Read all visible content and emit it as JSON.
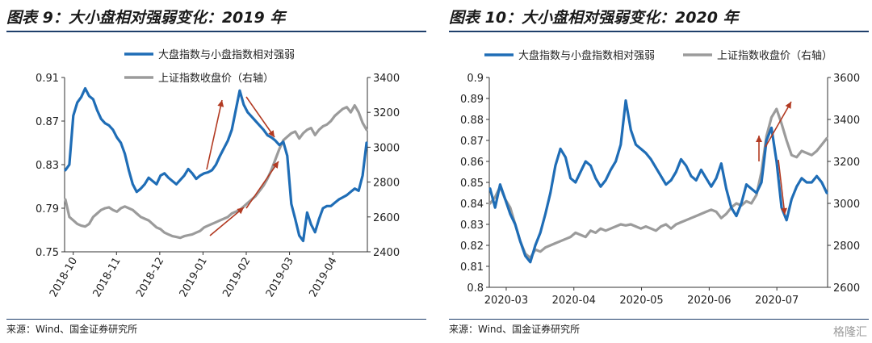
{
  "colors": {
    "blue": "#1f6db6",
    "gray": "#9b9b9b",
    "arrow": "#b23a22",
    "title_rule": "#1f3f6b"
  },
  "left": {
    "title": "图表 9：大小盘相对强弱变化：2019 年",
    "source": "来源：Wind、国金证券研究所"
  },
  "right": {
    "title": "图表 10：大小盘相对强弱变化：2020 年",
    "source": "来源：Wind、国金证券研究所"
  },
  "watermark": "格隆汇",
  "chart_data": [
    {
      "type": "line",
      "legend_placement": "top",
      "grid": false,
      "x_ticks": [
        "2018-10",
        "2018-11",
        "2018-12",
        "2019-01",
        "2019-02",
        "2019-03",
        "2019-04"
      ],
      "ylim": [
        0.75,
        0.91
      ],
      "y_ticks": [
        0.91,
        0.87,
        0.83,
        0.79,
        0.75
      ],
      "y2lim": [
        2400,
        3400
      ],
      "y2_ticks": [
        3400,
        3200,
        3000,
        2800,
        2600,
        2400
      ],
      "series": [
        {
          "name": "大盘指数与小盘指数相对强弱",
          "axis": "left",
          "values": [
            0.825,
            0.83,
            0.875,
            0.887,
            0.892,
            0.9,
            0.893,
            0.89,
            0.88,
            0.872,
            0.868,
            0.866,
            0.862,
            0.855,
            0.85,
            0.84,
            0.825,
            0.812,
            0.805,
            0.808,
            0.812,
            0.818,
            0.815,
            0.812,
            0.82,
            0.822,
            0.818,
            0.815,
            0.812,
            0.816,
            0.82,
            0.826,
            0.822,
            0.817,
            0.82,
            0.822,
            0.823,
            0.825,
            0.83,
            0.838,
            0.845,
            0.852,
            0.862,
            0.88,
            0.898,
            0.885,
            0.878,
            0.874,
            0.87,
            0.866,
            0.862,
            0.857,
            0.855,
            0.852,
            0.848,
            0.851,
            0.838,
            0.794,
            0.78,
            0.765,
            0.76,
            0.786,
            0.775,
            0.768,
            0.78,
            0.79,
            0.792,
            0.792,
            0.795,
            0.798,
            0.8,
            0.802,
            0.805,
            0.808,
            0.806,
            0.82,
            0.85
          ]
        },
        {
          "name": "上证指数收盘价（右轴）",
          "axis": "right",
          "values": [
            2700,
            2600,
            2580,
            2560,
            2550,
            2545,
            2560,
            2600,
            2620,
            2640,
            2650,
            2655,
            2640,
            2630,
            2650,
            2660,
            2650,
            2640,
            2620,
            2600,
            2590,
            2580,
            2560,
            2540,
            2530,
            2510,
            2500,
            2490,
            2485,
            2480,
            2490,
            2495,
            2500,
            2510,
            2520,
            2540,
            2550,
            2560,
            2570,
            2580,
            2590,
            2600,
            2620,
            2630,
            2640,
            2660,
            2680,
            2700,
            2720,
            2750,
            2780,
            2820,
            2870,
            2930,
            2990,
            3040,
            3060,
            3080,
            3090,
            3050,
            3080,
            3100,
            3110,
            3070,
            3100,
            3120,
            3130,
            3150,
            3180,
            3200,
            3220,
            3230,
            3200,
            3240,
            3200,
            3140,
            3100
          ]
        }
      ]
    },
    {
      "type": "line",
      "legend_placement": "top",
      "grid": false,
      "x_ticks": [
        "2020-03",
        "2020-04",
        "2020-05",
        "2020-06",
        "2020-07"
      ],
      "ylim": [
        0.8,
        0.9
      ],
      "y_ticks": [
        0.9,
        0.89,
        0.88,
        0.87,
        0.86,
        0.85,
        0.84,
        0.83,
        0.82,
        0.81,
        0.8
      ],
      "y2lim": [
        2600,
        3600
      ],
      "y2_ticks": [
        3600,
        3400,
        3200,
        3000,
        2800,
        2600
      ],
      "series": [
        {
          "name": "大盘指数与小盘指数相对强弱",
          "axis": "left",
          "values": [
            0.847,
            0.838,
            0.849,
            0.842,
            0.835,
            0.83,
            0.822,
            0.815,
            0.812,
            0.82,
            0.826,
            0.835,
            0.845,
            0.858,
            0.866,
            0.862,
            0.852,
            0.85,
            0.855,
            0.86,
            0.858,
            0.852,
            0.848,
            0.851,
            0.856,
            0.86,
            0.868,
            0.889,
            0.875,
            0.868,
            0.866,
            0.864,
            0.861,
            0.857,
            0.853,
            0.849,
            0.851,
            0.855,
            0.861,
            0.858,
            0.853,
            0.851,
            0.856,
            0.852,
            0.848,
            0.852,
            0.859,
            0.847,
            0.838,
            0.834,
            0.84,
            0.849,
            0.847,
            0.845,
            0.85,
            0.87,
            0.876,
            0.86,
            0.838,
            0.832,
            0.842,
            0.848,
            0.852,
            0.85,
            0.85,
            0.853,
            0.85,
            0.845
          ]
        },
        {
          "name": "上证指数收盘价（右轴）",
          "axis": "right",
          "values": [
            3000,
            3030,
            3080,
            3020,
            2980,
            2900,
            2820,
            2760,
            2740,
            2780,
            2770,
            2790,
            2800,
            2810,
            2820,
            2830,
            2840,
            2860,
            2850,
            2840,
            2870,
            2860,
            2880,
            2870,
            2880,
            2890,
            2900,
            2895,
            2900,
            2890,
            2880,
            2890,
            2880,
            2870,
            2890,
            2900,
            2880,
            2900,
            2910,
            2920,
            2930,
            2940,
            2950,
            2960,
            2970,
            2960,
            2930,
            2950,
            2980,
            3000,
            2990,
            3010,
            3000,
            3040,
            3150,
            3320,
            3410,
            3450,
            3380,
            3300,
            3230,
            3220,
            3250,
            3240,
            3230,
            3250,
            3280,
            3310
          ]
        }
      ]
    }
  ]
}
